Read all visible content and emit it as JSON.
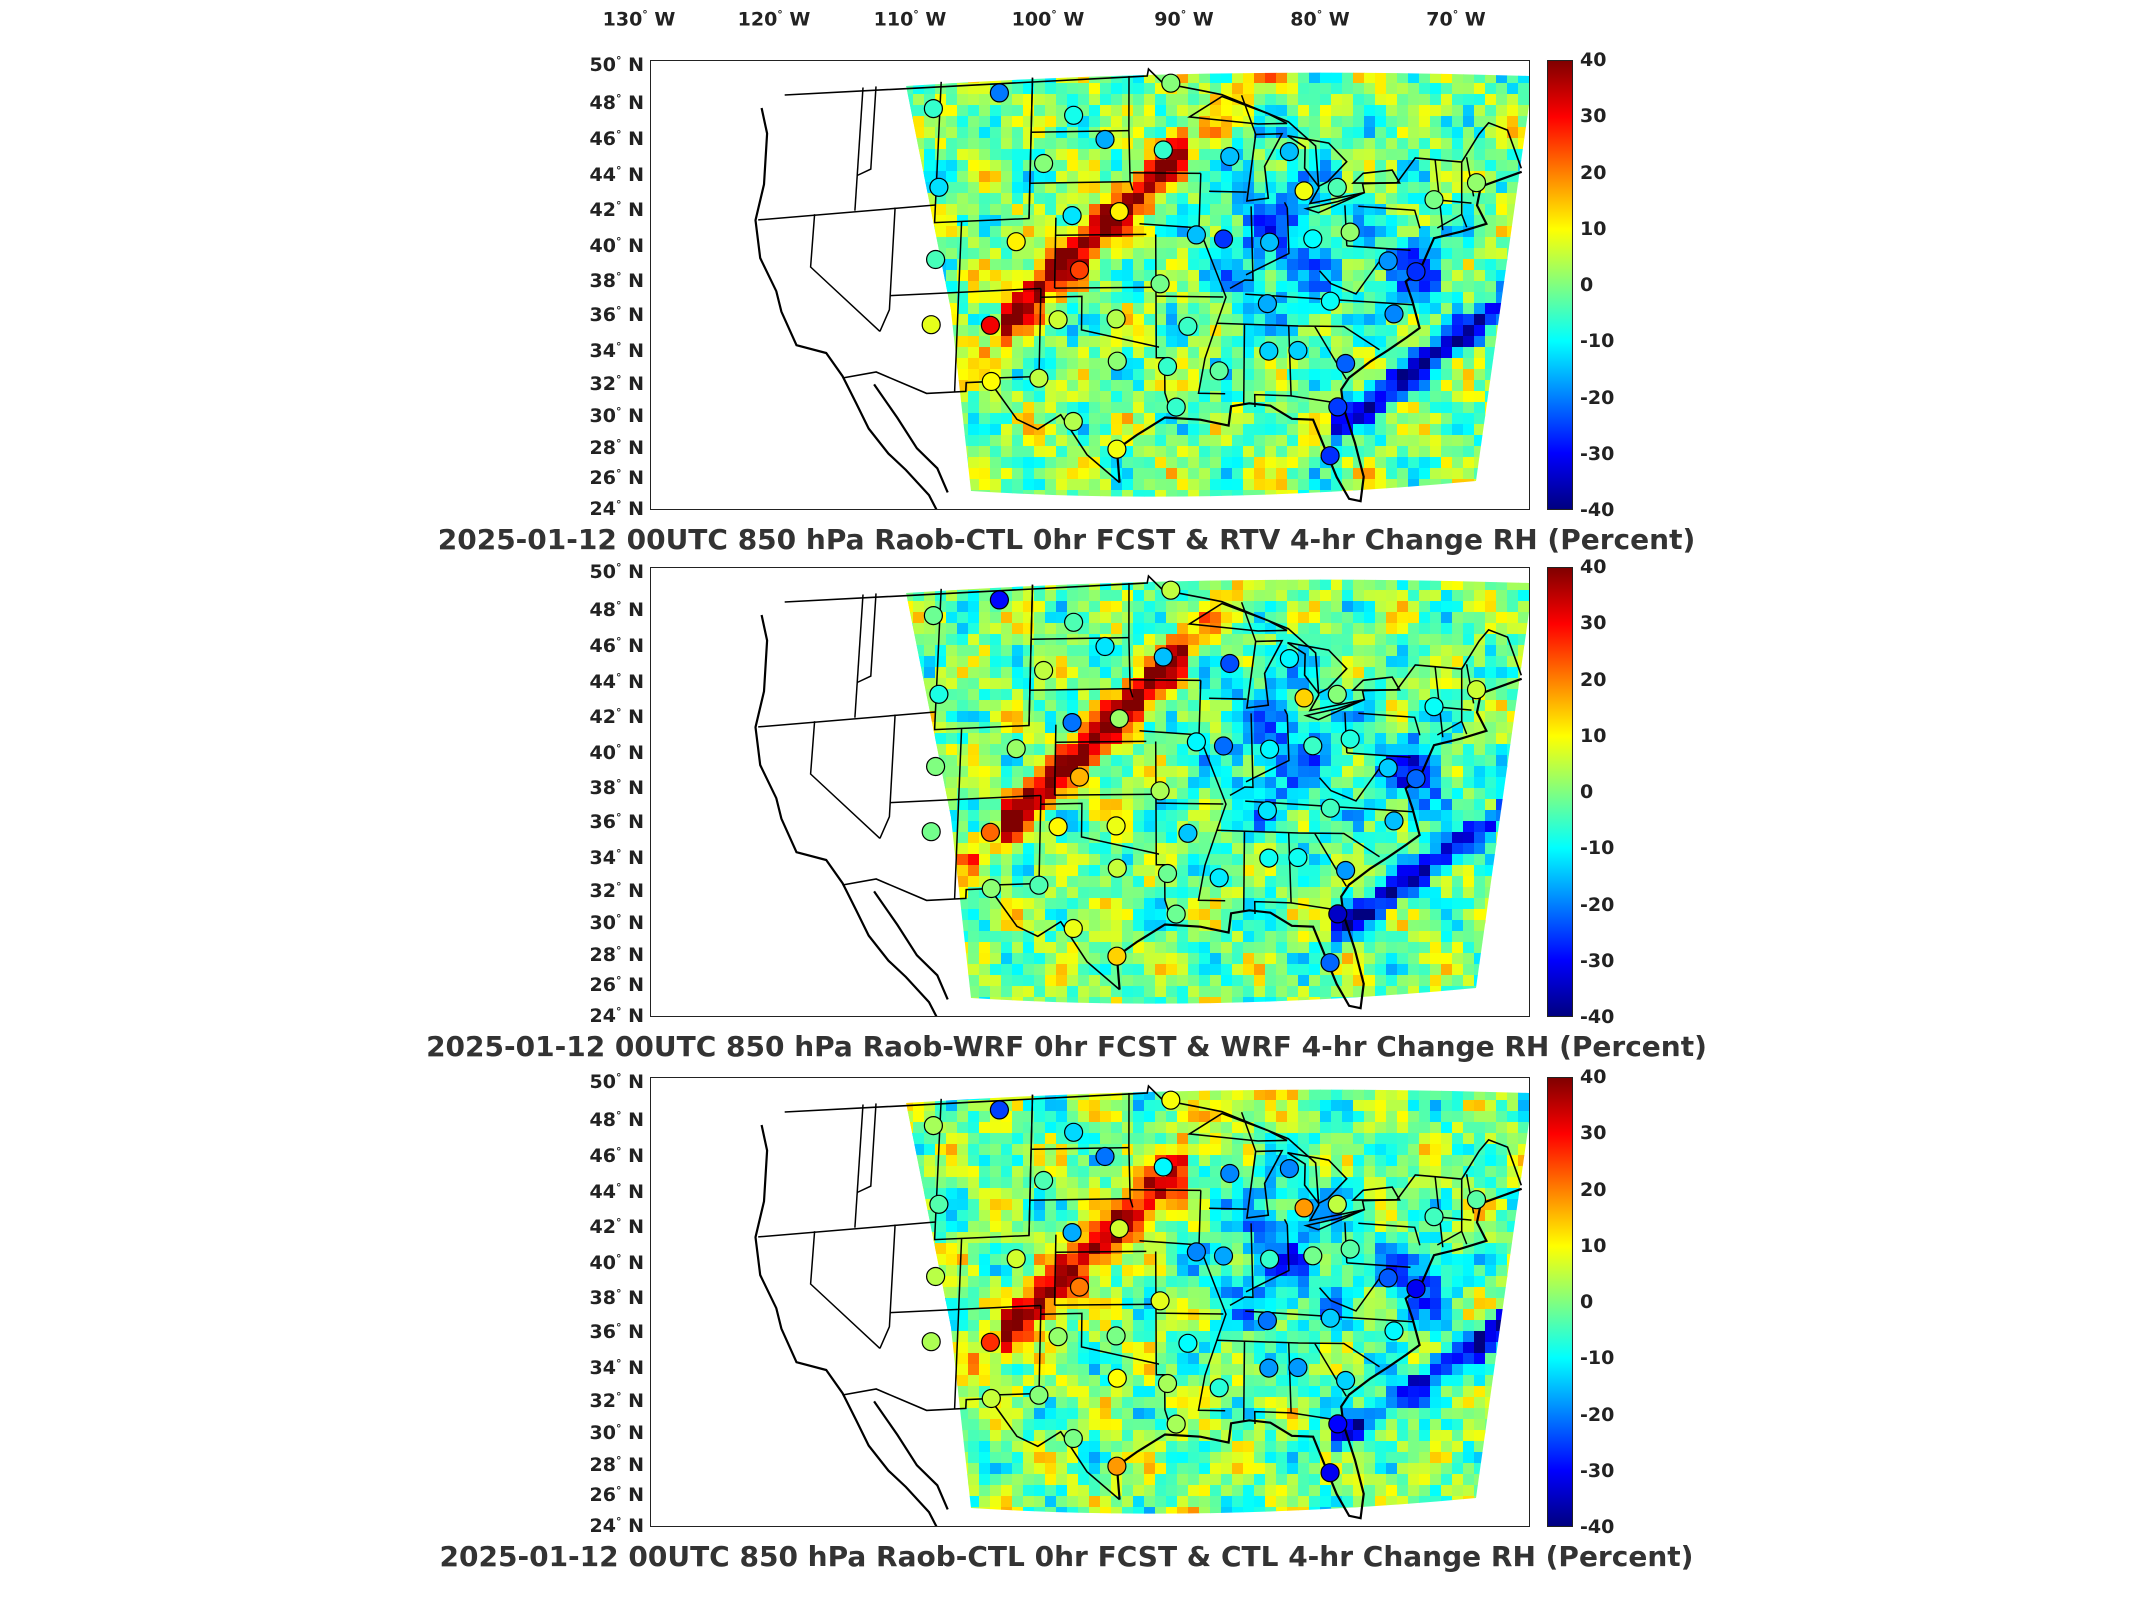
{
  "lon_labels": [
    {
      "deg": "130",
      "hem": "W"
    },
    {
      "deg": "120",
      "hem": "W"
    },
    {
      "deg": "110",
      "hem": "W"
    },
    {
      "deg": "100",
      "hem": "W"
    },
    {
      "deg": "90",
      "hem": "W"
    },
    {
      "deg": "80",
      "hem": "W"
    },
    {
      "deg": "70",
      "hem": "W"
    }
  ],
  "lat_labels": [
    {
      "deg": "50",
      "hem": "N"
    },
    {
      "deg": "48",
      "hem": "N"
    },
    {
      "deg": "46",
      "hem": "N"
    },
    {
      "deg": "44",
      "hem": "N"
    },
    {
      "deg": "42",
      "hem": "N"
    },
    {
      "deg": "40",
      "hem": "N"
    },
    {
      "deg": "38",
      "hem": "N"
    },
    {
      "deg": "36",
      "hem": "N"
    },
    {
      "deg": "34",
      "hem": "N"
    },
    {
      "deg": "32",
      "hem": "N"
    },
    {
      "deg": "30",
      "hem": "N"
    },
    {
      "deg": "28",
      "hem": "N"
    },
    {
      "deg": "26",
      "hem": "N"
    },
    {
      "deg": "24",
      "hem": "N"
    }
  ],
  "colorbar": {
    "ticks": [
      "40",
      "30",
      "20",
      "10",
      "0",
      "-10",
      "-20",
      "-30",
      "-40"
    ],
    "range": [
      -40,
      40
    ],
    "colormap": "jet"
  },
  "panels": [
    {
      "title": "2025-01-12 00UTC 850 hPa Raob-CTL 0hr FCST & RTV 4-hr Change RH (Percent)"
    },
    {
      "title": "2025-01-12 00UTC 850 hPa Raob-WRF 0hr FCST & WRF 4-hr Change RH (Percent)"
    },
    {
      "title": "2025-01-12 00UTC 850 hPa Raob-CTL 0hr FCST & CTL 4-hr Change RH (Percent)"
    }
  ],
  "colors": {
    "land_outline": "#000000",
    "field_base": "#9be26a",
    "band_red": "#e8200c",
    "band_blue": "#1a40d0"
  },
  "chart_data": {
    "type": "heatmap",
    "xlabel": "",
    "ylabel": "",
    "xlim": [
      -130,
      -65
    ],
    "ylim": [
      24,
      50
    ],
    "colorbar_range": [
      -40,
      40
    ],
    "raob_stations": [
      {
        "lon": -111.5,
        "lat": 47.5,
        "v": 0
      },
      {
        "lon": -106.5,
        "lat": 48.2,
        "v": -25
      },
      {
        "lon": -100.8,
        "lat": 46.8,
        "v": -10
      },
      {
        "lon": -98.4,
        "lat": 45.4,
        "v": -15
      },
      {
        "lon": -93.4,
        "lat": 48.6,
        "v": 5
      },
      {
        "lon": -94.0,
        "lat": 44.8,
        "v": -12
      },
      {
        "lon": -89.0,
        "lat": 44.5,
        "v": -18
      },
      {
        "lon": -84.5,
        "lat": 44.9,
        "v": -15
      },
      {
        "lon": -83.5,
        "lat": 42.7,
        "v": 12
      },
      {
        "lon": -81.0,
        "lat": 43.0,
        "v": 2
      },
      {
        "lon": -73.8,
        "lat": 42.7,
        "v": -5
      },
      {
        "lon": -70.5,
        "lat": 43.9,
        "v": 0
      },
      {
        "lon": -103.0,
        "lat": 44.1,
        "v": 2
      },
      {
        "lon": -110.8,
        "lat": 43.0,
        "v": -8
      },
      {
        "lon": -100.8,
        "lat": 41.1,
        "v": -18
      },
      {
        "lon": -97.3,
        "lat": 41.3,
        "v": 8
      },
      {
        "lon": -91.6,
        "lat": 40.0,
        "v": -15
      },
      {
        "lon": -86.2,
        "lat": 39.7,
        "v": -12
      },
      {
        "lon": -83.0,
        "lat": 40.0,
        "v": -4
      },
      {
        "lon": -80.2,
        "lat": 40.5,
        "v": -3
      },
      {
        "lon": -77.5,
        "lat": 39.0,
        "v": -20
      },
      {
        "lon": -75.5,
        "lat": 38.5,
        "v": -25
      },
      {
        "lon": -110.8,
        "lat": 38.9,
        "v": 0
      },
      {
        "lon": -104.9,
        "lat": 39.7,
        "v": 5
      },
      {
        "lon": -100.2,
        "lat": 38.0,
        "v": 22
      },
      {
        "lon": -97.5,
        "lat": 35.2,
        "v": 4
      },
      {
        "lon": -94.3,
        "lat": 37.2,
        "v": 2
      },
      {
        "lon": -89.6,
        "lat": 39.8,
        "v": -20
      },
      {
        "lon": -92.3,
        "lat": 34.8,
        "v": -10
      },
      {
        "lon": -86.5,
        "lat": 36.2,
        "v": -18
      },
      {
        "lon": -81.9,
        "lat": 36.5,
        "v": -8
      },
      {
        "lon": -77.3,
        "lat": 36.0,
        "v": -15
      },
      {
        "lon": -110.9,
        "lat": 35.2,
        "v": 2
      },
      {
        "lon": -106.6,
        "lat": 35.0,
        "v": 28
      },
      {
        "lon": -101.7,
        "lat": 35.2,
        "v": 6
      },
      {
        "lon": -97.4,
        "lat": 32.8,
        "v": 4
      },
      {
        "lon": -93.8,
        "lat": 32.5,
        "v": 0
      },
      {
        "lon": -90.1,
        "lat": 32.3,
        "v": -7
      },
      {
        "lon": -86.5,
        "lat": 33.5,
        "v": -15
      },
      {
        "lon": -84.4,
        "lat": 33.6,
        "v": -12
      },
      {
        "lon": -81.0,
        "lat": 33.0,
        "v": -18
      },
      {
        "lon": -106.4,
        "lat": 31.8,
        "v": 4
      },
      {
        "lon": -103.0,
        "lat": 31.9,
        "v": 2
      },
      {
        "lon": -100.5,
        "lat": 29.4,
        "v": 4
      },
      {
        "lon": -97.4,
        "lat": 27.8,
        "v": 12
      },
      {
        "lon": -93.2,
        "lat": 30.2,
        "v": 0
      },
      {
        "lon": -81.7,
        "lat": 30.5,
        "v": -30
      },
      {
        "lon": -82.4,
        "lat": 27.7,
        "v": -28
      }
    ]
  }
}
